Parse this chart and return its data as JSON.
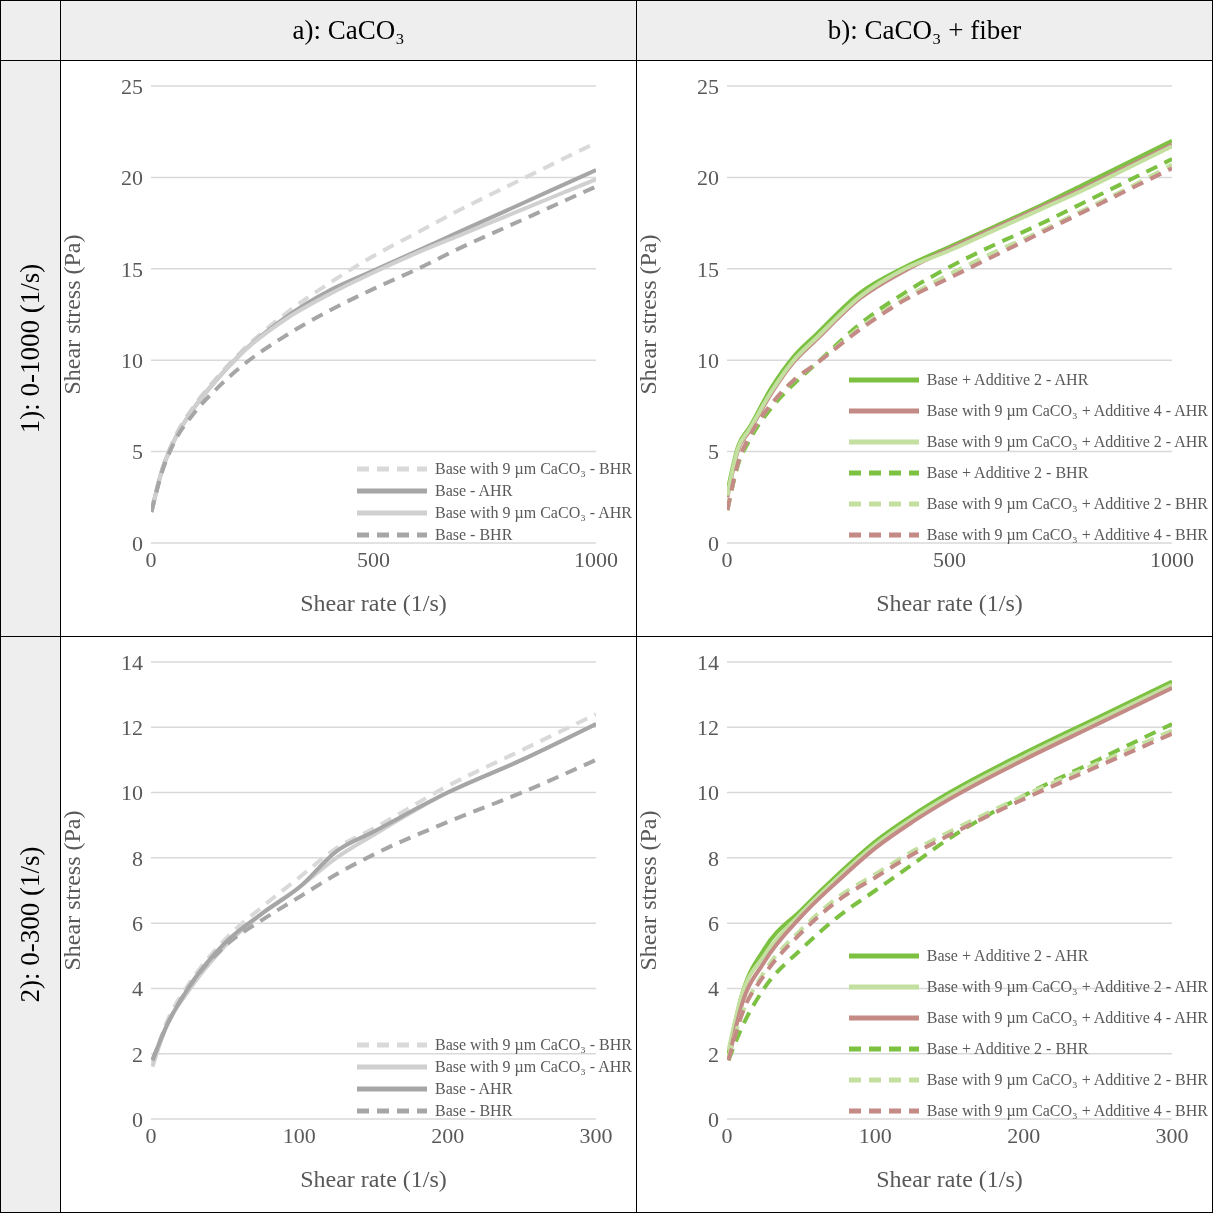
{
  "chart_data": [
    {
      "type": "line",
      "title": "a): CaCO₃",
      "subtitle": "1): 0-1000 (1/s)",
      "xlabel": "Shear rate (1/s)",
      "ylabel": "Shear stress (Pa)",
      "x": [
        1,
        25,
        50,
        100,
        150,
        200,
        300,
        400,
        500,
        600,
        700,
        800,
        900,
        1000
      ],
      "xlim": [
        0,
        1000
      ],
      "xticks": [
        0,
        500,
        1000
      ],
      "ylim": [
        0,
        25
      ],
      "yticks": [
        0,
        5,
        10,
        15,
        20,
        25
      ],
      "grid": "y",
      "legend": "bottom right",
      "series": [
        {
          "name": "Base with 9 µm CaCO₃ - BHR",
          "color": "#d9d9d9",
          "line_style": "dashed",
          "values": [
            1.8,
            4,
            5.6,
            7.6,
            9.1,
            10.4,
            12.5,
            14.2,
            15.7,
            17,
            18.3,
            19.5,
            20.7,
            21.9
          ]
        },
        {
          "name": "Base - AHR",
          "color": "#a6a6a6",
          "line_style": "solid",
          "values": [
            1.7,
            4,
            5.5,
            7.5,
            9,
            10.3,
            12.3,
            13.8,
            14.9,
            16,
            17.1,
            18.2,
            19.3,
            20.4
          ]
        },
        {
          "name": "Base with 9 µm CaCO₃ - AHR",
          "color": "#d0d0d0",
          "line_style": "solid",
          "values": [
            1.7,
            4,
            5.5,
            7.5,
            9,
            10.3,
            12.2,
            13.6,
            14.8,
            15.9,
            16.9,
            17.9,
            18.9,
            19.9
          ]
        },
        {
          "name": "Base - BHR",
          "color": "#a6a6a6",
          "line_style": "dashed",
          "values": [
            1.7,
            3.9,
            5.4,
            7.2,
            8.5,
            9.6,
            11.3,
            12.7,
            13.9,
            15,
            16.2,
            17.3,
            18.4,
            19.5
          ]
        }
      ]
    },
    {
      "type": "line",
      "title": "b): CaCO₃ + fiber",
      "xlabel": "Shear rate (1/s)",
      "ylabel": "Shear stress (Pa)",
      "x": [
        1,
        25,
        50,
        100,
        150,
        200,
        300,
        400,
        500,
        600,
        700,
        800,
        900,
        1000
      ],
      "xlim": [
        0,
        1000
      ],
      "xticks": [
        0,
        500,
        1000
      ],
      "ylim": [
        0,
        25
      ],
      "yticks": [
        0,
        5,
        10,
        15,
        20,
        25
      ],
      "grid": "y",
      "legend": "bottom right",
      "series": [
        {
          "name": "Base + Additive 2 - AHR",
          "color": "#7dc142",
          "line_style": "solid",
          "values": [
            2.8,
            5.3,
            6.3,
            8.5,
            10.2,
            11.4,
            13.7,
            15.1,
            16.2,
            17.3,
            18.4,
            19.6,
            20.8,
            22
          ]
        },
        {
          "name": "Base with 9 µm CaCO₃ + Additive 4 - AHR",
          "color": "#c48a86",
          "line_style": "solid",
          "values": [
            2.5,
            5.1,
            6.1,
            8.2,
            9.9,
            11.1,
            13.4,
            14.9,
            16.1,
            17.2,
            18.3,
            19.4,
            20.6,
            21.8
          ]
        },
        {
          "name": "Base with 9 µm CaCO₃ + Additive 2 - AHR",
          "color": "#c4e0a0",
          "line_style": "solid",
          "values": [
            2.6,
            5.2,
            6.2,
            8.3,
            10,
            11.2,
            13.5,
            15,
            16,
            17.1,
            18.2,
            19.3,
            20.5,
            21.7
          ]
        },
        {
          "name": "Base + Additive 2 - BHR",
          "color": "#7dc142",
          "line_style": "dashed",
          "values": [
            1.8,
            4.3,
            5.6,
            7.4,
            8.7,
            9.8,
            12,
            13.7,
            15.1,
            16.3,
            17.4,
            18.6,
            19.8,
            21
          ]
        },
        {
          "name": "Base with 9 µm CaCO₃ + Additive 2 - BHR",
          "color": "#c4e0a0",
          "line_style": "dashed",
          "values": [
            1.8,
            4.4,
            5.8,
            7.6,
            8.9,
            9.8,
            11.8,
            13.4,
            14.7,
            15.9,
            17,
            18.2,
            19.4,
            20.7
          ]
        },
        {
          "name": "Base with 9 µm CaCO₃ + Additive 4 - BHR",
          "color": "#c48a86",
          "line_style": "dashed",
          "values": [
            1.8,
            4.4,
            5.8,
            7.6,
            8.9,
            9.8,
            11.7,
            13.3,
            14.5,
            15.7,
            16.9,
            18.1,
            19.3,
            20.5
          ]
        }
      ]
    },
    {
      "type": "line",
      "subtitle": "2): 0-300 (1/s)",
      "xlabel": "Shear rate (1/s)",
      "ylabel": "Shear stress (Pa)",
      "x": [
        1,
        10,
        25,
        50,
        75,
        100,
        125,
        150,
        200,
        250,
        300
      ],
      "xlim": [
        0,
        300
      ],
      "xticks": [
        0,
        100,
        200,
        300
      ],
      "ylim": [
        0,
        14
      ],
      "yticks": [
        0,
        2,
        4,
        6,
        8,
        10,
        12,
        14
      ],
      "grid": "y",
      "legend": "bottom right",
      "series": [
        {
          "name": "Base with 9 µm CaCO₃ - BHR",
          "color": "#d9d9d9",
          "line_style": "dashed",
          "values": [
            1.7,
            2.9,
            4.1,
            5.5,
            6.5,
            7.4,
            8.3,
            8.9,
            10.2,
            11.3,
            12.4
          ]
        },
        {
          "name": "Base with 9 µm CaCO₃ - AHR",
          "color": "#d0d0d0",
          "line_style": "solid",
          "values": [
            1.6,
            2.8,
            3.9,
            5.3,
            6.3,
            7.1,
            8,
            8.7,
            10,
            11,
            12.1
          ]
        },
        {
          "name": "Base - AHR",
          "color": "#a6a6a6",
          "line_style": "solid",
          "values": [
            1.8,
            2.8,
            4,
            5.4,
            6.3,
            7.1,
            8.2,
            8.8,
            10,
            11,
            12.1
          ]
        },
        {
          "name": "Base - BHR",
          "color": "#a6a6a6",
          "line_style": "dashed",
          "values": [
            1.8,
            2.8,
            4,
            5.3,
            6.1,
            6.8,
            7.5,
            8.1,
            9.1,
            10,
            11
          ]
        }
      ]
    },
    {
      "type": "line",
      "xlabel": "Shear rate (1/s)",
      "ylabel": "Shear stress (Pa)",
      "x": [
        1,
        10,
        25,
        50,
        75,
        100,
        125,
        150,
        200,
        250,
        300
      ],
      "xlim": [
        0,
        300
      ],
      "xticks": [
        0,
        100,
        200,
        300
      ],
      "ylim": [
        0,
        14
      ],
      "yticks": [
        0,
        2,
        4,
        6,
        8,
        10,
        12,
        14
      ],
      "grid": "y",
      "legend": "bottom right",
      "series": [
        {
          "name": "Base + Additive 2 - AHR",
          "color": "#7dc142",
          "line_style": "solid",
          "values": [
            2,
            3.8,
            5.2,
            6.4,
            7.5,
            8.5,
            9.3,
            10,
            11.2,
            12.3,
            13.4
          ]
        },
        {
          "name": "Base with 9 µm CaCO₃ + Additive 2 - AHR",
          "color": "#c4e0a0",
          "line_style": "solid",
          "values": [
            2.1,
            3.8,
            5,
            6.3,
            7.4,
            8.4,
            9.2,
            9.9,
            11.1,
            12.2,
            13.3
          ]
        },
        {
          "name": "Base with 9 µm CaCO₃ + Additive 4 - AHR",
          "color": "#c48a86",
          "line_style": "solid",
          "values": [
            1.8,
            3.5,
            4.8,
            6.2,
            7.3,
            8.3,
            9.1,
            9.8,
            11,
            12.1,
            13.2
          ]
        },
        {
          "name": "Base + Additive 2 - BHR",
          "color": "#7dc142",
          "line_style": "dashed",
          "values": [
            1.8,
            2.8,
            4,
            5.2,
            6.2,
            7,
            7.8,
            8.6,
            9.9,
            11,
            12.1
          ]
        },
        {
          "name": "Base with 9 µm CaCO₃ + Additive 2 - BHR",
          "color": "#c4e0a0",
          "line_style": "dashed",
          "values": [
            1.9,
            3.2,
            4.5,
            5.8,
            6.8,
            7.5,
            8.2,
            8.8,
            9.9,
            10.9,
            11.9
          ]
        },
        {
          "name": "Base with 9 µm CaCO₃ + Additive 4 - BHR",
          "color": "#c48a86",
          "line_style": "dashed",
          "values": [
            1.8,
            3.2,
            4.4,
            5.7,
            6.7,
            7.4,
            8.1,
            8.7,
            9.8,
            10.8,
            11.8
          ]
        }
      ]
    }
  ]
}
